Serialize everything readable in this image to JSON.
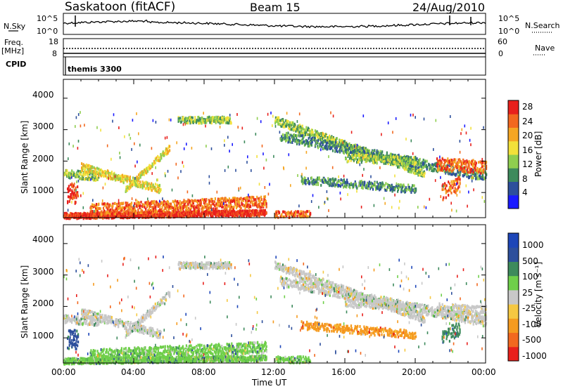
{
  "header": {
    "station": "Saskatoon (fitACF)",
    "beam": "Beam 15",
    "date": "24/Aug/2010"
  },
  "top_panels": {
    "nsky_label": "N.Sky",
    "nsky_ticks": [
      "10^5",
      "10^0"
    ],
    "nsearch_label": "N.Search",
    "nsearch_ticks": [
      "10^5",
      "10^0"
    ],
    "freq_label_1": "Freq.",
    "freq_label_2": "[MHz]",
    "freq_ticks": [
      "18",
      "8"
    ],
    "nave_label": "Nave",
    "nave_ticks": [
      "60",
      "0"
    ],
    "cpid_label": "CPID",
    "cpid_value": "themis 3300"
  },
  "colors": {
    "power": [
      "#1a1aff",
      "#2d4f9c",
      "#3d8a5c",
      "#8fce4f",
      "#f2e13a",
      "#f5a623",
      "#f2681f",
      "#e8201c"
    ],
    "velocity": [
      "#e8201c",
      "#f2681f",
      "#f59b1f",
      "#f5c842",
      "#c8c8c8",
      "#6fcf4a",
      "#3d8a5c",
      "#2d4f9c",
      "#1d46b8"
    ]
  },
  "chart_data": [
    {
      "type": "heatmap",
      "name": "power",
      "ylabel": "Slant Range [km]",
      "yticks": [
        "1000",
        "2000",
        "3000",
        "4000"
      ],
      "ylim": [
        200,
        4600
      ],
      "xticks": [
        "00:00",
        "04:00",
        "08:00",
        "12:00",
        "16:00",
        "20:00",
        "00:00"
      ],
      "xlim_hours": [
        0,
        24
      ],
      "colorbar_label": "Power [dB]",
      "colorbar_ticks": [
        "4",
        "8",
        "12",
        "16",
        "20",
        "24",
        "28"
      ],
      "colorbar_range": [
        0,
        30
      ]
    },
    {
      "type": "heatmap",
      "name": "velocity",
      "ylabel": "Slant Range [km]",
      "yticks": [
        "1000",
        "2000",
        "3000",
        "4000"
      ],
      "ylim": [
        200,
        4600
      ],
      "xticks": [
        "00:00",
        "04:00",
        "08:00",
        "12:00",
        "16:00",
        "20:00",
        "00:00"
      ],
      "xlabel": "Time UT",
      "xlim_hours": [
        0,
        24
      ],
      "colorbar_label": "Velocity [m s⁻¹]",
      "colorbar_ticks": [
        "1000",
        "500",
        "100",
        "25",
        "-25",
        "-100",
        "-500",
        "-1000"
      ]
    }
  ]
}
